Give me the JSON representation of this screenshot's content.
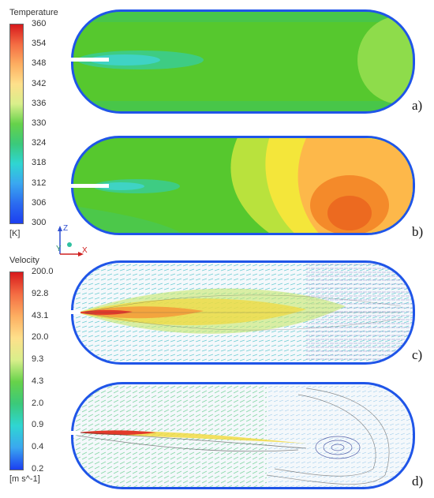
{
  "temperature_legend": {
    "title": "Temperature",
    "unit": "[K]",
    "ticks": [
      "360",
      "354",
      "348",
      "342",
      "336",
      "330",
      "324",
      "318",
      "312",
      "306",
      "300"
    ],
    "colors": [
      "#d7191c",
      "#f46d43",
      "#fdae61",
      "#fee08b",
      "#d9ef8b",
      "#66d24a",
      "#3bc97a",
      "#2fd6d2",
      "#3aa7f0",
      "#2b6cf0",
      "#1c3ff0"
    ]
  },
  "velocity_legend": {
    "title": "Velocity",
    "unit": "[m s^-1]",
    "ticks": [
      "200.0",
      "92.8",
      "43.1",
      "20.0",
      "9.3",
      "4.3",
      "2.0",
      "0.9",
      "0.4",
      "0.2"
    ],
    "colors": [
      "#d7191c",
      "#f46d43",
      "#fdae61",
      "#fee08b",
      "#d9ef8b",
      "#66d24a",
      "#3bc97a",
      "#2fd6d2",
      "#3aa7f0",
      "#1c3ff0"
    ]
  },
  "axes": {
    "z": "Z",
    "y": "Y",
    "x": "X"
  },
  "panels": [
    {
      "label": "a)"
    },
    {
      "label": "b)"
    },
    {
      "label": "c)"
    },
    {
      "label": "d)"
    }
  ]
}
